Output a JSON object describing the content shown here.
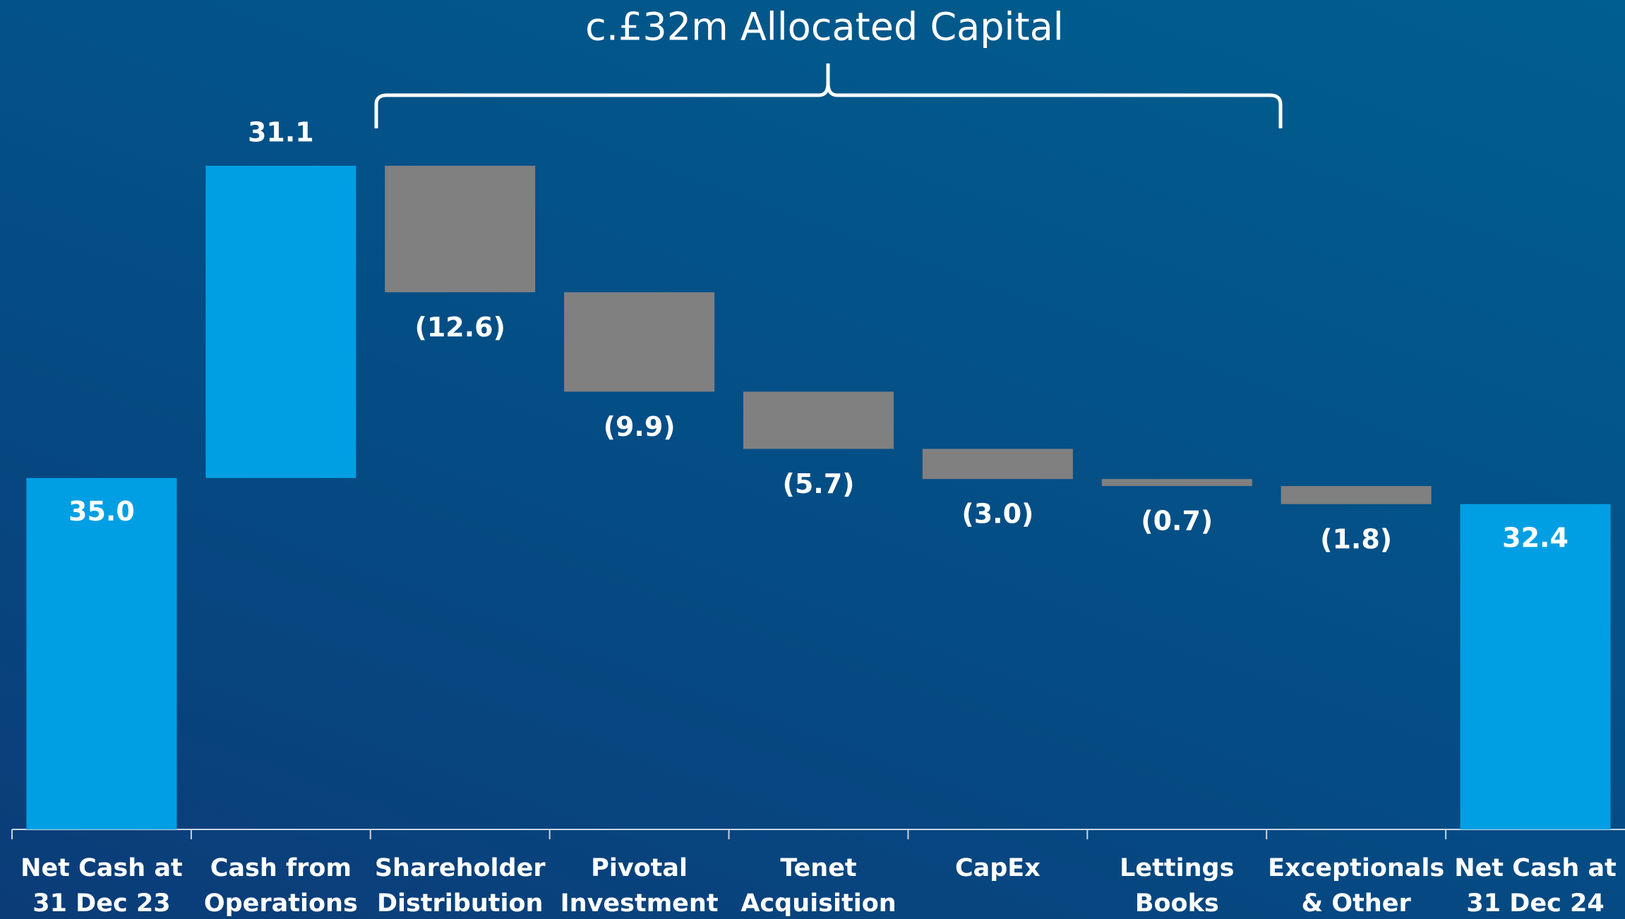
{
  "chart_data": {
    "type": "waterfall",
    "annotation": "c.£32m Allocated Capital",
    "categories": [
      "Net Cash at\n31 Dec 23",
      "Cash from\nOperations",
      "Shareholder\nDistribution",
      "Pivotal\nInvestment",
      "Tenet\nAcquisition",
      "CapEx",
      "Lettings\nBooks",
      "Exceptionals\n& Other",
      "Net Cash at\n31 Dec 24"
    ],
    "values": [
      35.0,
      31.1,
      -12.6,
      -9.9,
      -5.7,
      -3.0,
      -0.7,
      -1.8,
      32.4
    ],
    "value_labels": [
      "35.0",
      "31.1",
      "(12.6)",
      "(9.9)",
      "(5.7)",
      "(3.0)",
      "(0.7)",
      "(1.8)",
      "32.4"
    ],
    "colors": [
      "#009fe3",
      "#009fe3",
      "#808080",
      "#808080",
      "#808080",
      "#808080",
      "#808080",
      "#808080",
      "#009fe3"
    ]
  }
}
